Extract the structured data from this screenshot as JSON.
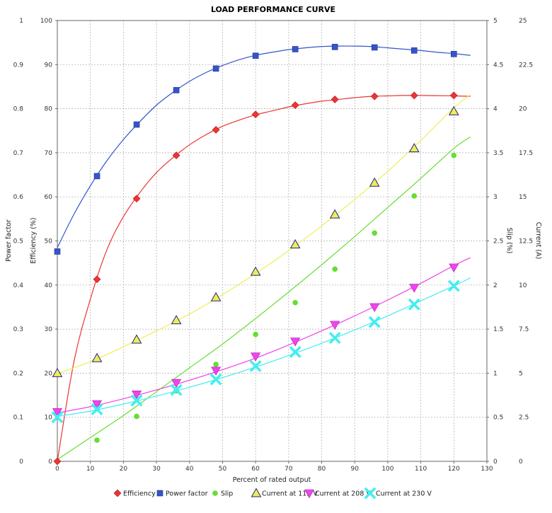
{
  "chart_data": {
    "type": "scatter",
    "title": "LOAD PERFORMANCE CURVE",
    "xlabel": "Percent of rated output",
    "xlim": [
      0,
      130
    ],
    "xticks": [
      "0",
      "10",
      "20",
      "30",
      "40",
      "50",
      "60",
      "70",
      "80",
      "90",
      "100",
      "110",
      "120",
      "130"
    ],
    "axes": {
      "power_factor": {
        "label": "Power factor",
        "lim": [
          0,
          1
        ],
        "ticks": [
          "0",
          "0.1",
          "0.2",
          "0.3",
          "0.4",
          "0.5",
          "0.6",
          "0.7",
          "0.8",
          "0.9",
          "1"
        ]
      },
      "efficiency": {
        "label": "Efficiency (%)",
        "lim": [
          0,
          100
        ],
        "ticks": [
          "0",
          "10",
          "20",
          "30",
          "40",
          "50",
          "60",
          "70",
          "80",
          "90",
          "100"
        ]
      },
      "slip": {
        "label": "Slip (%)",
        "lim": [
          0,
          5
        ],
        "ticks": [
          "0",
          "0.5",
          "1",
          "1.5",
          "2",
          "2.5",
          "3",
          "3.5",
          "4",
          "4.5",
          "5"
        ]
      },
      "current": {
        "label": "Current (A)",
        "lim": [
          0,
          25
        ],
        "ticks": [
          "0",
          "2.5",
          "5",
          "7.5",
          "10",
          "12.5",
          "15",
          "17.5",
          "20",
          "22.5",
          "25"
        ]
      }
    },
    "grid": true,
    "legend_position": "bottom",
    "series": [
      {
        "name": "Efficiency",
        "axis": "efficiency",
        "color": "#ee3333",
        "marker": "diamond",
        "x": [
          0,
          12,
          24,
          36,
          48,
          60,
          72,
          84,
          96,
          108,
          120
        ],
        "y": [
          0,
          41.3,
          59.6,
          69.4,
          75.2,
          78.7,
          80.8,
          82.1,
          82.8,
          83.0,
          83.0
        ],
        "curve_x": [
          0,
          5,
          10,
          15,
          20,
          25,
          30,
          35,
          40,
          45,
          50,
          55,
          60,
          65,
          70,
          75,
          80,
          85,
          90,
          95,
          100,
          105,
          110,
          115,
          120,
          125
        ],
        "curve_y": [
          0,
          22.5,
          36.8,
          48.0,
          55.5,
          61.0,
          65.5,
          68.9,
          71.8,
          74.1,
          76.0,
          77.4,
          78.6,
          79.5,
          80.4,
          81.1,
          81.7,
          82.1,
          82.5,
          82.8,
          82.9,
          83.0,
          83.0,
          82.95,
          82.9,
          82.8
        ]
      },
      {
        "name": "Power factor",
        "axis": "power_factor",
        "color": "#3355cc",
        "marker": "square",
        "x": [
          0,
          12,
          24,
          36,
          48,
          60,
          72,
          84,
          96,
          108,
          120
        ],
        "y": [
          0.476,
          0.647,
          0.764,
          0.842,
          0.891,
          0.92,
          0.935,
          0.94,
          0.939,
          0.932,
          0.924
        ],
        "curve_x": [
          0,
          5,
          10,
          15,
          20,
          25,
          30,
          35,
          40,
          45,
          50,
          55,
          60,
          65,
          70,
          75,
          80,
          85,
          90,
          95,
          100,
          105,
          110,
          115,
          120,
          125
        ],
        "curve_y": [
          0.485,
          0.56,
          0.625,
          0.682,
          0.73,
          0.771,
          0.808,
          0.837,
          0.862,
          0.882,
          0.898,
          0.911,
          0.921,
          0.928,
          0.934,
          0.938,
          0.941,
          0.942,
          0.942,
          0.941,
          0.938,
          0.935,
          0.932,
          0.928,
          0.925,
          0.921
        ]
      },
      {
        "name": "Slip",
        "axis": "slip",
        "color": "#66dd33",
        "marker": "circle",
        "x": [
          12,
          24,
          36,
          48,
          60,
          72,
          84,
          96,
          108,
          120
        ],
        "y": [
          0.24,
          0.51,
          0.8,
          1.1,
          1.44,
          1.8,
          2.18,
          2.59,
          3.01,
          3.47
        ],
        "curve_x": [
          0,
          10,
          20,
          30,
          40,
          50,
          60,
          70,
          80,
          90,
          100,
          110,
          120,
          125
        ],
        "curve_y": [
          0.02,
          0.27,
          0.52,
          0.79,
          1.06,
          1.33,
          1.62,
          1.92,
          2.23,
          2.55,
          2.88,
          3.21,
          3.55,
          3.68
        ]
      },
      {
        "name": "Current at 115 V",
        "axis": "current",
        "color": "#eeee55",
        "marker": "triangle-up",
        "x": [
          0,
          12,
          24,
          36,
          48,
          60,
          72,
          84,
          96,
          108,
          120
        ],
        "y": [
          5.0,
          5.85,
          6.9,
          8.0,
          9.3,
          10.75,
          12.3,
          14.0,
          15.8,
          17.75,
          19.85
        ],
        "curve_x": [
          0,
          10,
          20,
          30,
          40,
          50,
          60,
          70,
          80,
          90,
          100,
          110,
          120,
          125
        ],
        "curve_y": [
          4.98,
          5.65,
          6.5,
          7.4,
          8.35,
          9.45,
          10.65,
          11.95,
          13.35,
          14.85,
          16.45,
          18.2,
          20.05,
          20.8
        ]
      },
      {
        "name": "Current at 208 V",
        "axis": "current",
        "color": "#ee44ee",
        "marker": "triangle-down",
        "x": [
          0,
          12,
          24,
          36,
          48,
          60,
          72,
          84,
          96,
          108,
          120
        ],
        "y": [
          2.8,
          3.25,
          3.8,
          4.45,
          5.15,
          5.95,
          6.8,
          7.75,
          8.75,
          9.85,
          11.0
        ],
        "curve_x": [
          0,
          10,
          20,
          30,
          40,
          50,
          60,
          70,
          80,
          90,
          100,
          110,
          120,
          125
        ],
        "curve_y": [
          2.75,
          3.1,
          3.55,
          4.05,
          4.6,
          5.2,
          5.85,
          6.6,
          7.4,
          8.25,
          9.15,
          10.1,
          11.1,
          11.55
        ]
      },
      {
        "name": "Current at 230 V",
        "axis": "current",
        "color": "#44eeee",
        "marker": "x",
        "x": [
          0,
          12,
          24,
          36,
          48,
          60,
          72,
          84,
          96,
          108,
          120
        ],
        "y": [
          2.5,
          2.95,
          3.45,
          4.05,
          4.65,
          5.4,
          6.2,
          7.0,
          7.9,
          8.9,
          9.95
        ],
        "curve_x": [
          0,
          10,
          20,
          30,
          40,
          50,
          60,
          70,
          80,
          90,
          100,
          110,
          120,
          125
        ],
        "curve_y": [
          2.55,
          2.85,
          3.25,
          3.7,
          4.2,
          4.75,
          5.35,
          6.0,
          6.7,
          7.45,
          8.25,
          9.1,
          9.95,
          10.4
        ]
      }
    ]
  }
}
